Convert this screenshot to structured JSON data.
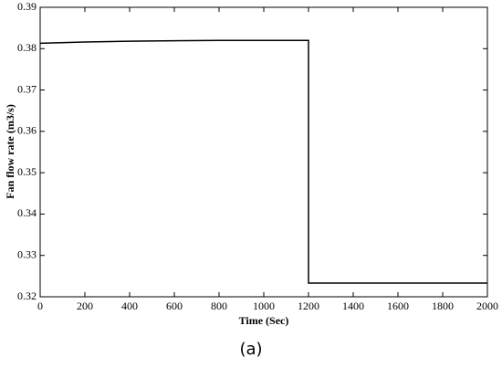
{
  "chart_data": {
    "type": "line",
    "xlabel": "Time (Sec)",
    "ylabel": "Fan flow rate (m3/s)",
    "caption": "(a)",
    "x": [
      0,
      200,
      400,
      600,
      800,
      1000,
      1200,
      1200,
      1400,
      1600,
      1800,
      2000
    ],
    "series": [
      {
        "color": "#000000",
        "values": [
          0.3813,
          0.3816,
          0.3818,
          0.3819,
          0.382,
          0.382,
          0.382,
          0.3233,
          0.3233,
          0.3233,
          0.3233,
          0.3233
        ]
      }
    ],
    "xlim": [
      0,
      2000
    ],
    "ylim": [
      0.32,
      0.39
    ],
    "xticks": [
      0,
      200,
      400,
      600,
      800,
      1000,
      1200,
      1400,
      1600,
      1800,
      2000
    ],
    "yticks": [
      0.32,
      0.33,
      0.34,
      0.35,
      0.36,
      0.37,
      0.38,
      0.39
    ],
    "grid": false
  }
}
